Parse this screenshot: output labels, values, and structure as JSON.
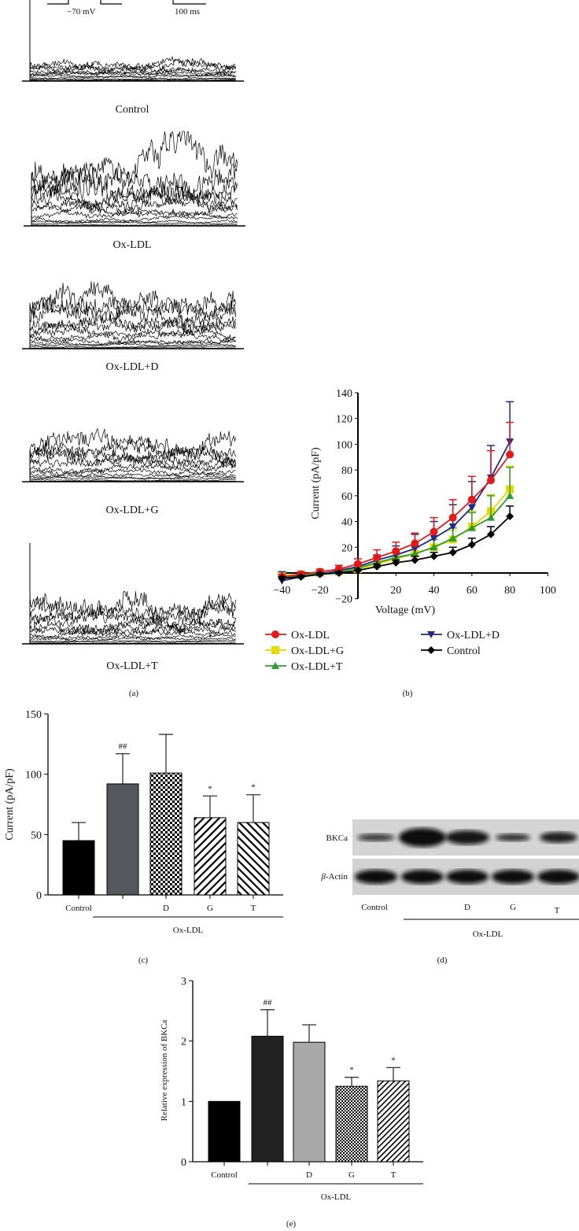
{
  "panel_a": {
    "protocol_label": "−70 mV",
    "scale_label": "100 ms",
    "traces": [
      {
        "label": "Control"
      },
      {
        "label": "Ox-LDL"
      },
      {
        "label": "Ox-LDL+D"
      },
      {
        "label": "Ox-LDL+G"
      },
      {
        "label": "Ox-LDL+T"
      }
    ],
    "caption": "(a)"
  },
  "chart_data": [
    {
      "id": "b",
      "type": "line",
      "caption": "(b)",
      "xlabel": "Voltage (mV)",
      "ylabel": "Current (pA/pF)",
      "xlim": [
        -40,
        100
      ],
      "ylim": [
        -20,
        140
      ],
      "xticks": [
        -40,
        -20,
        20,
        40,
        60,
        80,
        100
      ],
      "yticks": [
        -20,
        20,
        40,
        60,
        80,
        100,
        120,
        140
      ],
      "x": [
        -40,
        -30,
        -20,
        -10,
        0,
        10,
        20,
        30,
        40,
        50,
        60,
        70,
        80
      ],
      "legend_placement": "bottom",
      "series": [
        {
          "name": "Ox-LDL",
          "color": "#e31a1c",
          "marker": "circle",
          "y": [
            -3,
            -1,
            1,
            3,
            7,
            12,
            17,
            23,
            32,
            43,
            57,
            72,
            92
          ],
          "err": [
            2,
            2,
            2,
            3,
            4,
            6,
            7,
            8,
            11,
            14,
            18,
            23,
            25
          ]
        },
        {
          "name": "Ox-LDL+D",
          "color": "#1f2a80",
          "marker": "triangle-down",
          "y": [
            -6,
            -3,
            -1,
            2,
            5,
            10,
            14,
            19,
            27,
            36,
            51,
            74,
            102
          ],
          "err": [
            7,
            3,
            2,
            2,
            3,
            4,
            7,
            11,
            13,
            17,
            20,
            25,
            31
          ]
        },
        {
          "name": "Ox-LDL+G",
          "color": "#e6d800",
          "marker": "square",
          "y": [
            -2,
            -1,
            0,
            1,
            3,
            7,
            11,
            15,
            20,
            26,
            36,
            48,
            65
          ],
          "err": [
            1,
            1,
            1,
            2,
            2,
            3,
            4,
            5,
            6,
            7,
            12,
            13,
            18
          ]
        },
        {
          "name": "Ox-LDL+T",
          "color": "#2e9b2e",
          "marker": "triangle-up",
          "y": [
            -3,
            -2,
            0,
            1,
            4,
            8,
            12,
            15,
            20,
            27,
            35,
            43,
            60
          ],
          "err": [
            1,
            1,
            1,
            2,
            2,
            3,
            4,
            5,
            6,
            8,
            12,
            17,
            22
          ]
        },
        {
          "name": "Control",
          "color": "#000000",
          "marker": "diamond",
          "y": [
            -4,
            -3,
            -1,
            0,
            2,
            5,
            8,
            10,
            13,
            16,
            22,
            30,
            44
          ],
          "err": [
            1,
            1,
            1,
            1,
            1,
            2,
            2,
            3,
            3,
            4,
            5,
            6,
            8
          ]
        }
      ]
    },
    {
      "id": "c",
      "type": "bar",
      "caption": "(c)",
      "ylabel": "Current (pA/pF)",
      "ylim": [
        0,
        150
      ],
      "yticks": [
        0,
        50,
        100,
        150
      ],
      "categories": [
        "Control",
        "",
        "D",
        "G",
        "T"
      ],
      "group_label": "Ox-LDL",
      "values": [
        45,
        92,
        101,
        64,
        60
      ],
      "err": [
        15,
        25,
        32,
        18,
        23
      ],
      "annotations": [
        "",
        "##",
        "",
        "*",
        "*"
      ]
    },
    {
      "id": "e",
      "type": "bar",
      "caption": "(e)",
      "ylabel": "Relative expression of BKCa",
      "ylim": [
        0,
        3
      ],
      "yticks": [
        0,
        1,
        2,
        3
      ],
      "categories": [
        "Control",
        "",
        "D",
        "G",
        "T"
      ],
      "group_label": "Ox-LDL",
      "values": [
        1.0,
        2.08,
        1.98,
        1.25,
        1.34
      ],
      "err": [
        0,
        0.44,
        0.29,
        0.15,
        0.22
      ],
      "annotations": [
        "",
        "##",
        "",
        "*",
        "*"
      ]
    }
  ],
  "panel_d": {
    "caption": "(d)",
    "rows": [
      {
        "label": "BKCa"
      },
      {
        "label_prefix": "β",
        "label": "-Actin"
      }
    ],
    "lanes": [
      "Control",
      "",
      "D",
      "G",
      "T"
    ],
    "group_label": "Ox-LDL"
  }
}
